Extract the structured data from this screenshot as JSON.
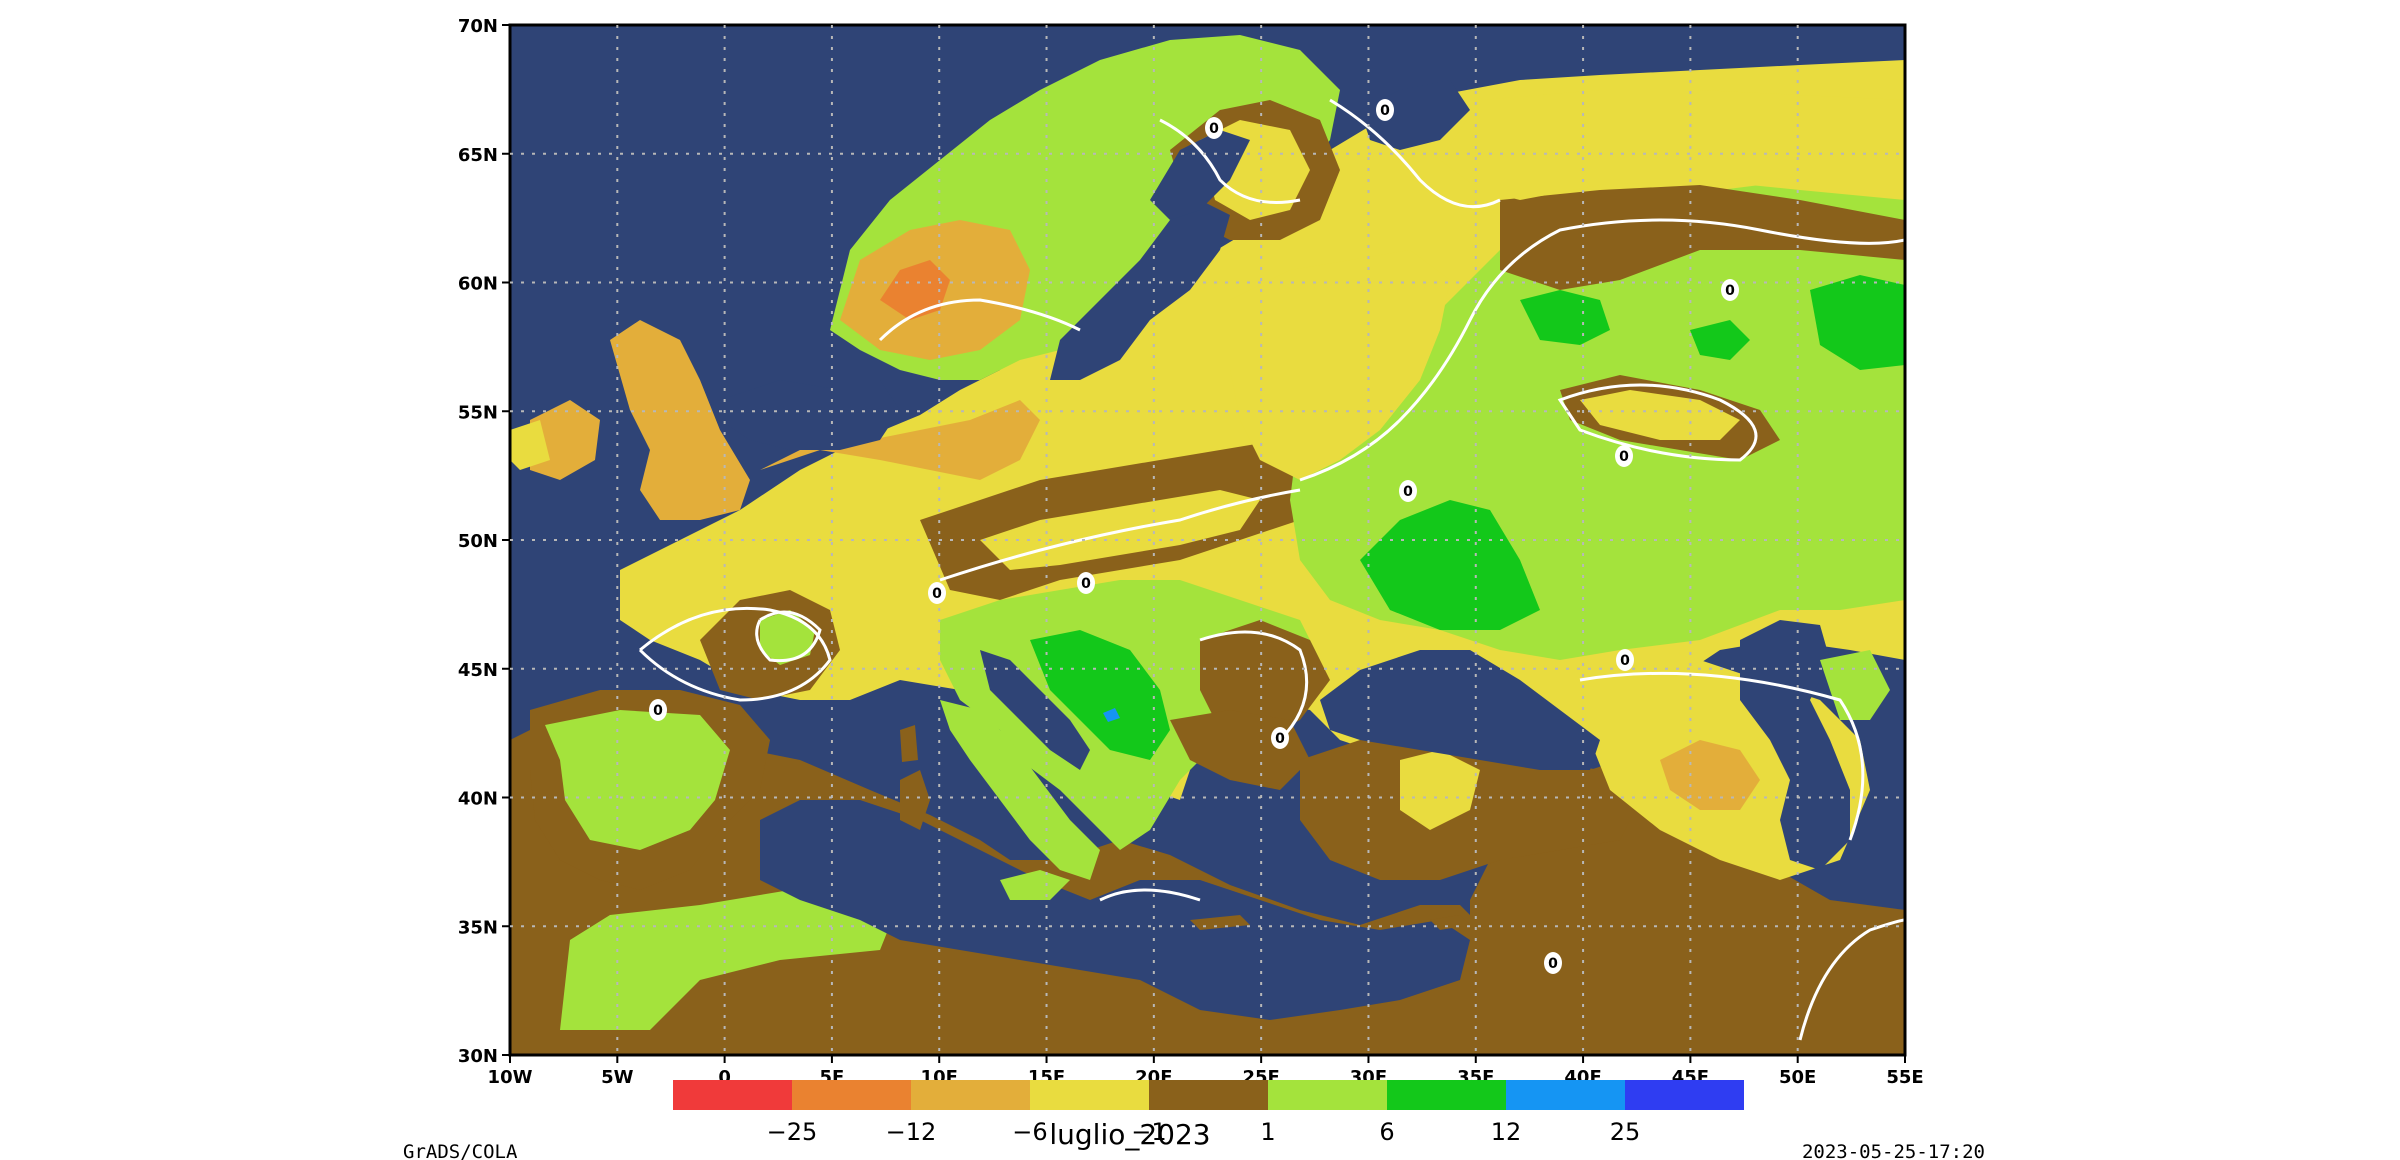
{
  "title": "luglio_2023",
  "footer": {
    "left": "GrADS/COLA",
    "right": "2023-05-25-17:20"
  },
  "axes": {
    "x_ticks": [
      "10W",
      "5W",
      "0",
      "5E",
      "10E",
      "15E",
      "20E",
      "25E",
      "30E",
      "35E",
      "40E",
      "45E",
      "50E",
      "55E"
    ],
    "y_ticks": [
      "70N",
      "65N",
      "60N",
      "55N",
      "50N",
      "45N",
      "40N",
      "35N",
      "30N"
    ]
  },
  "colorbar": {
    "colors": [
      "#f03a3a",
      "#ea8230",
      "#e3ae3a",
      "#e9dc3f",
      "#8a611b",
      "#a4e33c",
      "#13c81a",
      "#1595f3",
      "#2f3df2"
    ],
    "labels": [
      "-25",
      "-12",
      "-6",
      "-1",
      "1",
      "6",
      "12",
      "25"
    ]
  },
  "contour_label": "0",
  "colors": {
    "sea": "#2f4476",
    "land_dry_strong": "#e3ae3a",
    "land_dry": "#e9dc3f",
    "land_neutral": "#8a611b",
    "land_wet": "#a4e33c",
    "land_wet_strong": "#13c81a"
  }
}
